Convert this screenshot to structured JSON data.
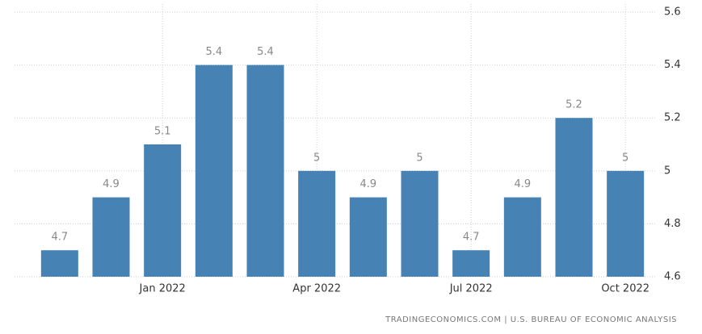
{
  "chart_data": {
    "type": "bar",
    "categories": [
      null,
      null,
      "Jan 2022",
      null,
      null,
      "Apr 2022",
      null,
      null,
      "Jul 2022",
      null,
      null,
      "Oct 2022"
    ],
    "values": [
      4.7,
      4.9,
      5.1,
      5.4,
      5.4,
      5,
      4.9,
      5,
      4.7,
      4.9,
      5.2,
      5
    ],
    "color": "#4682b4",
    "ylim": [
      4.6,
      5.6
    ],
    "yticks": [
      4.6,
      4.8,
      5,
      5.2,
      5.4,
      5.6
    ],
    "grid": true,
    "source": "TRADINGECONOMICS.COM | U.S. BUREAU OF ECONOMIC ANALYSIS"
  }
}
